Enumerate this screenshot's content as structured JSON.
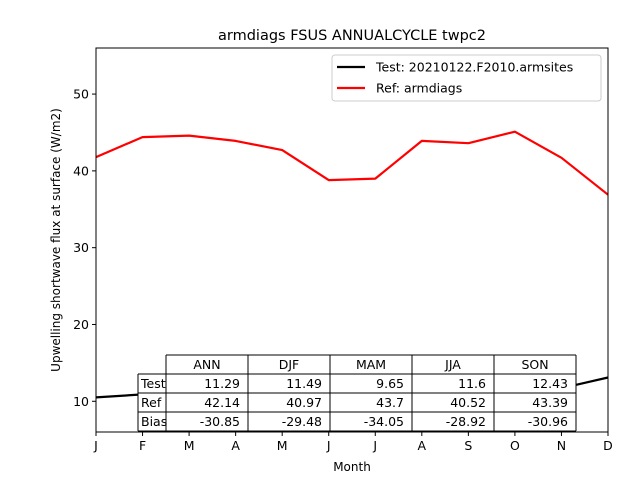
{
  "chart_data": {
    "type": "line",
    "title": "armdiags FSUS ANNUALCYCLE twpc2",
    "xlabel": "Month",
    "ylabel": "Upwelling shortwave flux at surface (W/m2)",
    "categories": [
      "J",
      "F",
      "M",
      "A",
      "M",
      "J",
      "J",
      "A",
      "S",
      "O",
      "N",
      "D"
    ],
    "ylim": [
      6,
      56
    ],
    "yticks": [
      10,
      20,
      30,
      40,
      50
    ],
    "grid": false,
    "legend_position": "top-right",
    "series": [
      {
        "name": "Test: 20210122.F2010.armsites",
        "color": "#000000",
        "values": [
          10.5,
          10.9,
          10.0,
          9.5,
          9.3,
          11.0,
          11.1,
          12.7,
          12.8,
          12.6,
          11.7,
          13.1
        ]
      },
      {
        "name": "Ref: armdiags",
        "color": "#ff0000",
        "values": [
          41.8,
          44.4,
          44.6,
          43.9,
          42.7,
          38.8,
          39.0,
          43.9,
          43.6,
          45.1,
          41.7,
          36.9
        ]
      }
    ],
    "table": {
      "columns": [
        "ANN",
        "DJF",
        "MAM",
        "JJA",
        "SON"
      ],
      "rows": [
        {
          "label": "Test",
          "values": [
            "11.29",
            "11.49",
            "9.65",
            "11.6",
            "12.43"
          ]
        },
        {
          "label": "Ref",
          "values": [
            "42.14",
            "40.97",
            "43.7",
            "40.52",
            "43.39"
          ]
        },
        {
          "label": "Bias",
          "values": [
            "-30.85",
            "-29.48",
            "-34.05",
            "-28.92",
            "-30.96"
          ]
        }
      ]
    }
  }
}
